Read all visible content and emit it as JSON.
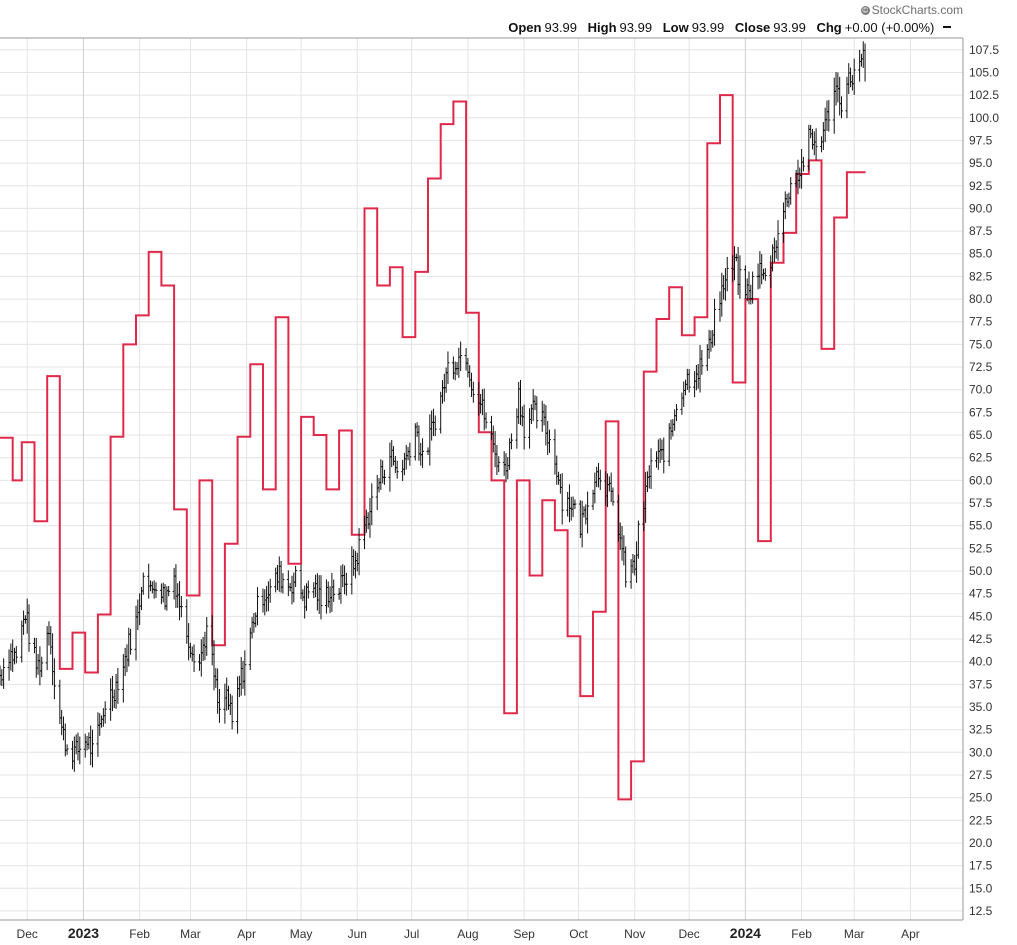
{
  "branding": {
    "icon": "copyright-icon",
    "text": "StockCharts.com"
  },
  "ohlc": {
    "open_label": "Open",
    "open_value": "93.99",
    "high_label": "High",
    "high_value": "93.99",
    "low_label": "Low",
    "low_value": "93.99",
    "close_label": "Close",
    "close_value": "93.99",
    "chg_label": "Chg",
    "chg_value": "+0.00 (+0.00%)"
  },
  "colors": {
    "price": "#111111",
    "indicator": "#e0294a",
    "grid": "#e4e4e4",
    "frame": "#999999"
  },
  "chart_data": {
    "type": "line",
    "grid": true,
    "y_axis_side": "right",
    "ylim": [
      11.5,
      108.8
    ],
    "xlim": [
      "2022-11-16",
      "2024-04-30"
    ],
    "yticks": [
      "12.5",
      "15.0",
      "17.5",
      "20.0",
      "22.5",
      "25.0",
      "27.5",
      "30.0",
      "32.5",
      "35.0",
      "37.5",
      "40.0",
      "42.5",
      "45.0",
      "47.5",
      "50.0",
      "52.5",
      "55.0",
      "57.5",
      "60.0",
      "62.5",
      "65.0",
      "67.5",
      "70.0",
      "72.5",
      "75.0",
      "77.5",
      "80.0",
      "82.5",
      "85.0",
      "87.5",
      "90.0",
      "92.5",
      "95.0",
      "97.5",
      "100.0",
      "102.5",
      "105.0",
      "107.5"
    ],
    "xticks": [
      {
        "date": "2022-12-01",
        "label": "Dec"
      },
      {
        "date": "2023-01-01",
        "label": "2023",
        "bold": true
      },
      {
        "date": "2023-02-01",
        "label": "Feb"
      },
      {
        "date": "2023-03-01",
        "label": "Mar"
      },
      {
        "date": "2023-04-01",
        "label": "Apr"
      },
      {
        "date": "2023-05-01",
        "label": "May"
      },
      {
        "date": "2023-06-01",
        "label": "Jun"
      },
      {
        "date": "2023-07-01",
        "label": "Jul"
      },
      {
        "date": "2023-08-01",
        "label": "Aug"
      },
      {
        "date": "2023-09-01",
        "label": "Sep"
      },
      {
        "date": "2023-10-01",
        "label": "Oct"
      },
      {
        "date": "2023-11-01",
        "label": "Nov"
      },
      {
        "date": "2023-12-01",
        "label": "Dec"
      },
      {
        "date": "2024-01-01",
        "label": "2024",
        "bold": true
      },
      {
        "date": "2024-02-01",
        "label": "Feb"
      },
      {
        "date": "2024-03-01",
        "label": "Mar"
      },
      {
        "date": "2024-04-01",
        "label": "Apr"
      }
    ],
    "series": [
      {
        "style": "ohlc-bars",
        "color": "#111111",
        "points": [
          [
            "2022-11-16",
            38.5
          ],
          [
            "2022-11-21",
            41.0
          ],
          [
            "2022-11-25",
            40.5
          ],
          [
            "2022-11-30",
            45.5
          ],
          [
            "2022-12-02",
            43.0
          ],
          [
            "2022-12-06",
            39.5
          ],
          [
            "2022-12-09",
            40.0
          ],
          [
            "2022-12-13",
            44.0
          ],
          [
            "2022-12-16",
            38.0
          ],
          [
            "2022-12-20",
            32.5
          ],
          [
            "2022-12-23",
            30.5
          ],
          [
            "2022-12-28",
            30.0
          ],
          [
            "2023-01-03",
            31.5
          ],
          [
            "2023-01-06",
            30.0
          ],
          [
            "2023-01-10",
            32.5
          ],
          [
            "2023-01-13",
            35.5
          ],
          [
            "2023-01-18",
            37.0
          ],
          [
            "2023-01-23",
            39.5
          ],
          [
            "2023-01-26",
            42.0
          ],
          [
            "2023-01-31",
            45.0
          ],
          [
            "2023-02-03",
            50.5
          ],
          [
            "2023-02-07",
            47.5
          ],
          [
            "2023-02-10",
            49.0
          ],
          [
            "2023-02-15",
            47.0
          ],
          [
            "2023-02-20",
            49.5
          ],
          [
            "2023-02-24",
            45.5
          ],
          [
            "2023-03-01",
            42.0
          ],
          [
            "2023-03-06",
            40.0
          ],
          [
            "2023-03-10",
            43.5
          ],
          [
            "2023-03-14",
            38.5
          ],
          [
            "2023-03-17",
            34.0
          ],
          [
            "2023-03-21",
            36.5
          ],
          [
            "2023-03-24",
            33.0
          ],
          [
            "2023-03-28",
            37.5
          ],
          [
            "2023-04-01",
            40.5
          ],
          [
            "2023-04-05",
            45.0
          ],
          [
            "2023-04-10",
            47.5
          ],
          [
            "2023-04-14",
            48.0
          ],
          [
            "2023-04-19",
            49.5
          ],
          [
            "2023-04-24",
            48.5
          ],
          [
            "2023-04-28",
            49.0
          ],
          [
            "2023-05-03",
            47.0
          ],
          [
            "2023-05-08",
            48.5
          ],
          [
            "2023-05-12",
            46.5
          ],
          [
            "2023-05-17",
            48.0
          ],
          [
            "2023-05-22",
            48.0
          ],
          [
            "2023-05-26",
            49.5
          ],
          [
            "2023-05-31",
            51.0
          ],
          [
            "2023-06-05",
            55.0
          ],
          [
            "2023-06-09",
            57.5
          ],
          [
            "2023-06-14",
            60.5
          ],
          [
            "2023-06-19",
            63.0
          ],
          [
            "2023-06-23",
            61.0
          ],
          [
            "2023-06-28",
            62.5
          ],
          [
            "2023-07-03",
            66.0
          ],
          [
            "2023-07-07",
            62.0
          ],
          [
            "2023-07-12",
            65.5
          ],
          [
            "2023-07-17",
            69.0
          ],
          [
            "2023-07-21",
            72.5
          ],
          [
            "2023-07-26",
            73.5
          ],
          [
            "2023-07-31",
            74.0
          ],
          [
            "2023-08-03",
            71.0
          ],
          [
            "2023-08-08",
            68.5
          ],
          [
            "2023-08-11",
            66.5
          ],
          [
            "2023-08-16",
            63.0
          ],
          [
            "2023-08-21",
            61.0
          ],
          [
            "2023-08-24",
            63.5
          ],
          [
            "2023-08-29",
            69.5
          ],
          [
            "2023-09-01",
            66.0
          ],
          [
            "2023-09-06",
            67.5
          ],
          [
            "2023-09-11",
            66.5
          ],
          [
            "2023-09-14",
            65.0
          ],
          [
            "2023-09-19",
            61.5
          ],
          [
            "2023-09-22",
            58.0
          ],
          [
            "2023-09-27",
            57.5
          ],
          [
            "2023-10-02",
            55.0
          ],
          [
            "2023-10-05",
            57.0
          ],
          [
            "2023-10-10",
            60.5
          ],
          [
            "2023-10-13",
            61.0
          ],
          [
            "2023-10-18",
            58.5
          ],
          [
            "2023-10-23",
            55.0
          ],
          [
            "2023-10-27",
            49.5
          ],
          [
            "2023-11-01",
            50.5
          ],
          [
            "2023-11-03",
            54.0
          ],
          [
            "2023-11-07",
            58.5
          ],
          [
            "2023-11-10",
            62.0
          ],
          [
            "2023-11-15",
            62.5
          ],
          [
            "2023-11-20",
            64.5
          ],
          [
            "2023-11-24",
            68.5
          ],
          [
            "2023-11-29",
            71.0
          ],
          [
            "2023-12-04",
            72.0
          ],
          [
            "2023-12-07",
            72.5
          ],
          [
            "2023-12-12",
            74.5
          ],
          [
            "2023-12-15",
            78.5
          ],
          [
            "2023-12-20",
            81.5
          ],
          [
            "2023-12-26",
            84.0
          ],
          [
            "2023-12-29",
            82.0
          ],
          [
            "2024-01-03",
            80.5
          ],
          [
            "2024-01-08",
            83.5
          ],
          [
            "2024-01-12",
            82.0
          ],
          [
            "2024-01-17",
            86.0
          ],
          [
            "2024-01-22",
            89.5
          ],
          [
            "2024-01-26",
            93.0
          ],
          [
            "2024-01-31",
            94.0
          ],
          [
            "2024-02-05",
            97.5
          ],
          [
            "2024-02-09",
            97.0
          ],
          [
            "2024-02-14",
            99.0
          ],
          [
            "2024-02-19",
            103.5
          ],
          [
            "2024-02-23",
            102.0
          ],
          [
            "2024-02-28",
            104.5
          ],
          [
            "2024-03-04",
            105.5
          ],
          [
            "2024-03-07",
            107.0
          ]
        ]
      },
      {
        "style": "step-line",
        "color": "#e0294a",
        "points": [
          [
            "2022-11-16",
            64.7
          ],
          [
            "2022-11-23",
            60.0
          ],
          [
            "2022-11-28",
            64.2
          ],
          [
            "2022-12-05",
            55.5
          ],
          [
            "2022-12-12",
            71.5
          ],
          [
            "2022-12-19",
            39.2
          ],
          [
            "2022-12-26",
            43.2
          ],
          [
            "2023-01-02",
            38.8
          ],
          [
            "2023-01-09",
            45.2
          ],
          [
            "2023-01-16",
            64.8
          ],
          [
            "2023-01-23",
            75.0
          ],
          [
            "2023-01-30",
            78.2
          ],
          [
            "2023-02-06",
            85.2
          ],
          [
            "2023-02-13",
            81.5
          ],
          [
            "2023-02-20",
            56.8
          ],
          [
            "2023-02-27",
            47.3
          ],
          [
            "2023-03-06",
            60.0
          ],
          [
            "2023-03-13",
            41.8
          ],
          [
            "2023-03-20",
            53.0
          ],
          [
            "2023-03-27",
            64.8
          ],
          [
            "2023-04-03",
            72.8
          ],
          [
            "2023-04-10",
            59.0
          ],
          [
            "2023-04-17",
            78.0
          ],
          [
            "2023-04-24",
            50.8
          ],
          [
            "2023-05-01",
            67.0
          ],
          [
            "2023-05-08",
            65.0
          ],
          [
            "2023-05-15",
            59.0
          ],
          [
            "2023-05-22",
            65.5
          ],
          [
            "2023-05-29",
            54.0
          ],
          [
            "2023-06-05",
            90.0
          ],
          [
            "2023-06-12",
            81.5
          ],
          [
            "2023-06-19",
            83.5
          ],
          [
            "2023-06-26",
            75.8
          ],
          [
            "2023-07-03",
            83.0
          ],
          [
            "2023-07-10",
            93.3
          ],
          [
            "2023-07-17",
            99.3
          ],
          [
            "2023-07-24",
            101.8
          ],
          [
            "2023-07-31",
            78.5
          ],
          [
            "2023-08-07",
            65.3
          ],
          [
            "2023-08-14",
            60.0
          ],
          [
            "2023-08-21",
            34.3
          ],
          [
            "2023-08-28",
            60.0
          ],
          [
            "2023-09-04",
            49.5
          ],
          [
            "2023-09-11",
            57.8
          ],
          [
            "2023-09-18",
            54.5
          ],
          [
            "2023-09-25",
            42.8
          ],
          [
            "2023-10-02",
            36.2
          ],
          [
            "2023-10-09",
            45.5
          ],
          [
            "2023-10-16",
            66.5
          ],
          [
            "2023-10-23",
            24.8
          ],
          [
            "2023-10-30",
            29.0
          ],
          [
            "2023-11-06",
            72.0
          ],
          [
            "2023-11-13",
            77.8
          ],
          [
            "2023-11-20",
            81.3
          ],
          [
            "2023-11-27",
            76.0
          ],
          [
            "2023-12-04",
            78.0
          ],
          [
            "2023-12-11",
            97.2
          ],
          [
            "2023-12-18",
            102.5
          ],
          [
            "2023-12-25",
            70.8
          ],
          [
            "2024-01-01",
            80.0
          ],
          [
            "2024-01-08",
            53.3
          ],
          [
            "2024-01-15",
            84.0
          ],
          [
            "2024-01-22",
            87.3
          ],
          [
            "2024-01-29",
            93.8
          ],
          [
            "2024-02-05",
            95.3
          ],
          [
            "2024-02-12",
            74.5
          ],
          [
            "2024-02-19",
            89.0
          ],
          [
            "2024-02-26",
            94.0
          ],
          [
            "2024-03-04",
            94.0
          ]
        ]
      }
    ]
  }
}
